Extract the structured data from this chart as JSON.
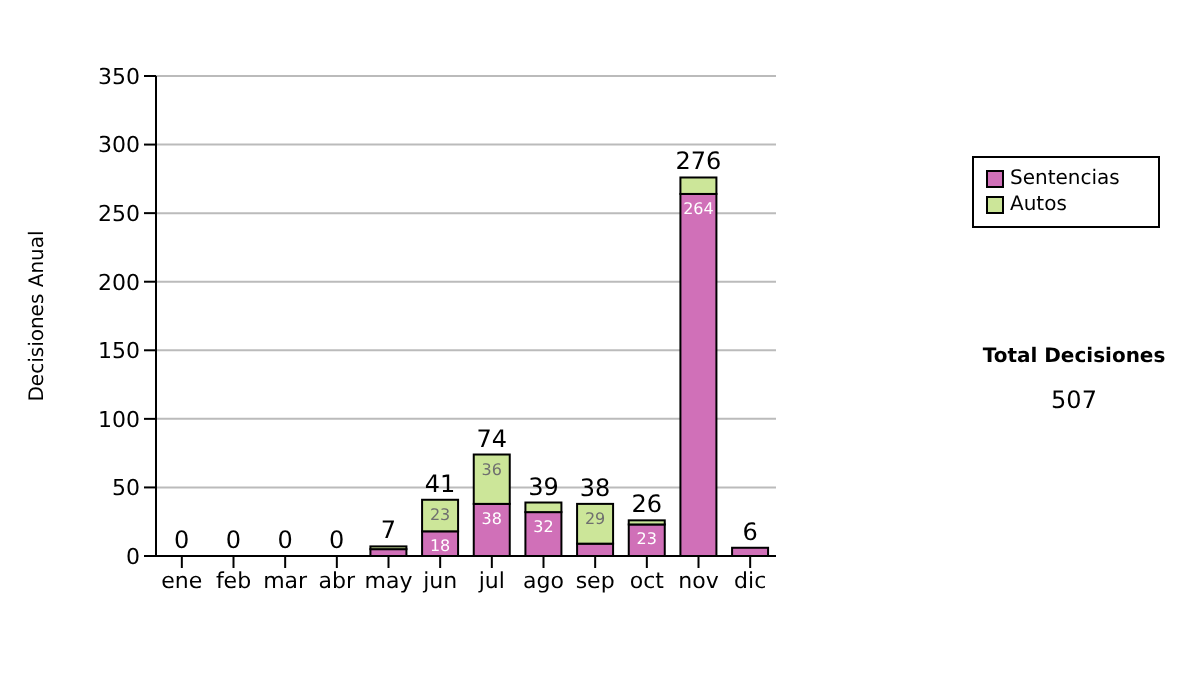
{
  "chart_data": {
    "type": "bar",
    "stacked": true,
    "ylabel": "Decisiones Anual",
    "categories": [
      "ene",
      "feb",
      "mar",
      "abr",
      "may",
      "jun",
      "jul",
      "ago",
      "sep",
      "oct",
      "nov",
      "dic"
    ],
    "series": [
      {
        "name": "Sentencias",
        "color": "#d070b8",
        "values": [
          0,
          0,
          0,
          0,
          5,
          18,
          38,
          32,
          9,
          23,
          264,
          6
        ],
        "value_labels": [
          null,
          null,
          null,
          null,
          null,
          "18",
          "38",
          "32",
          null,
          "23",
          "264",
          null
        ]
      },
      {
        "name": "Autos",
        "color": "#cce699",
        "values": [
          0,
          0,
          0,
          0,
          2,
          23,
          36,
          7,
          29,
          3,
          12,
          0
        ],
        "value_labels": [
          null,
          null,
          null,
          null,
          null,
          "23",
          "36",
          null,
          "29",
          null,
          null,
          null
        ]
      }
    ],
    "totals": [
      "0",
      "0",
      "0",
      "0",
      "7",
      "41",
      "74",
      "39",
      "38",
      "26",
      "276",
      "6"
    ],
    "ylim": [
      0,
      350
    ],
    "yticks": [
      0,
      50,
      100,
      150,
      200,
      250,
      300,
      350
    ],
    "grid": "y",
    "legend": "right",
    "annotations": [
      "Total Decisiones",
      "507"
    ]
  }
}
